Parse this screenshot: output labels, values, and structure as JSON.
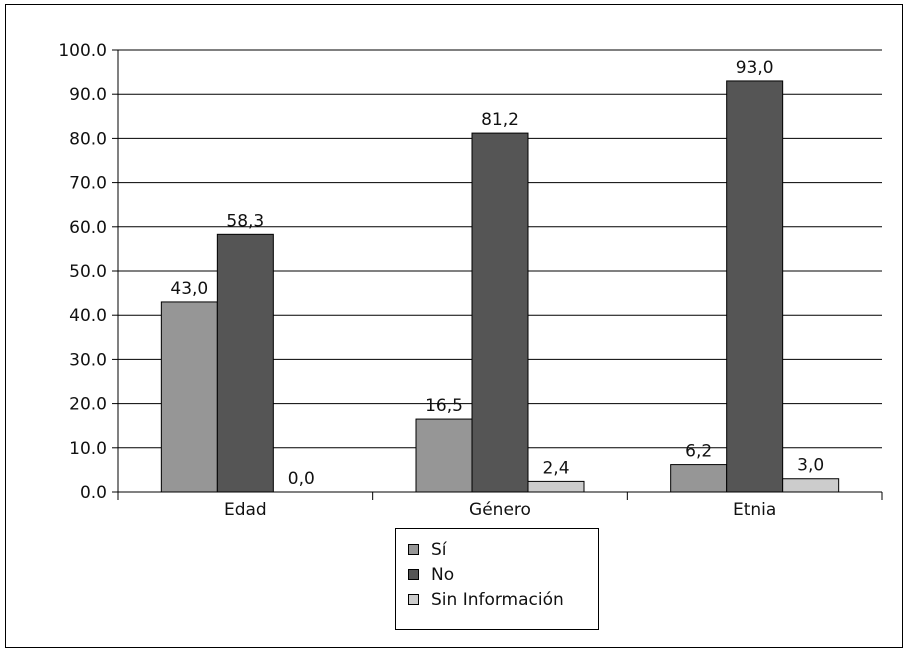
{
  "chart_data": {
    "type": "bar",
    "categories": [
      "Edad",
      "Género",
      "Etnia"
    ],
    "series": [
      {
        "name": "Sí",
        "values": [
          43.0,
          16.5,
          6.2
        ],
        "labels": [
          "43,0",
          "16,5",
          "6,2"
        ],
        "color": "#969696"
      },
      {
        "name": "No",
        "values": [
          58.3,
          81.2,
          93.0
        ],
        "labels": [
          "58,3",
          "81,2",
          "93,0"
        ],
        "color": "#555555"
      },
      {
        "name": "Sin Información",
        "values": [
          0.0,
          2.4,
          3.0
        ],
        "labels": [
          "0,0",
          "2,4",
          "3,0"
        ],
        "color": "#cccccc"
      }
    ],
    "yticks": [
      "0.0",
      "10.0",
      "20.0",
      "30.0",
      "40.0",
      "50.0",
      "60.0",
      "70.0",
      "80.0",
      "90.0",
      "100.0"
    ],
    "ylim": [
      0,
      100
    ],
    "grid": true,
    "legend_position": "bottom"
  }
}
